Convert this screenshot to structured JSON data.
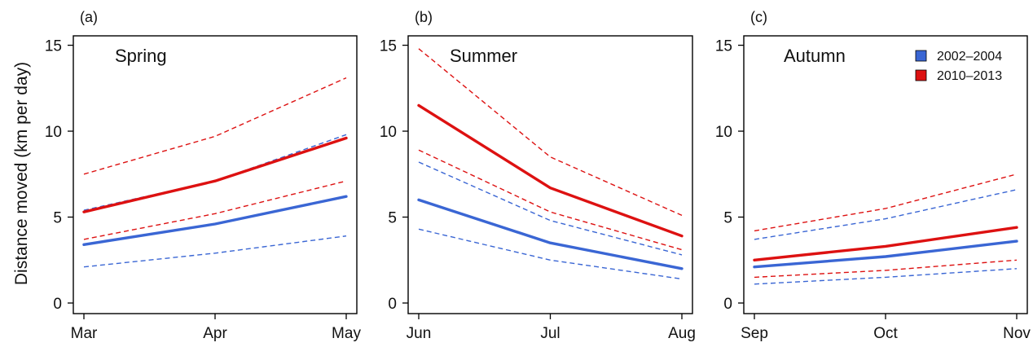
{
  "figure": {
    "ylabel": "Distance moved (km per day)",
    "legend": {
      "placement": "top-right of panel (c)",
      "entries": [
        {
          "label": "2002–2004",
          "color": "#3a66d4"
        },
        {
          "label": "2010–2013",
          "color": "#dd1111"
        }
      ]
    }
  },
  "chart_data": [
    {
      "type": "line",
      "panel_label": "(a)",
      "title": "Spring",
      "x": [
        "Mar",
        "Apr",
        "May"
      ],
      "ylim": [
        0,
        15.5
      ],
      "yticks": [
        0,
        5,
        10,
        15
      ],
      "grid": false,
      "series": [
        {
          "name": "2002–2004",
          "color": "#3a66d4",
          "values": [
            3.4,
            4.6,
            6.2
          ],
          "lower": [
            2.1,
            2.9,
            3.9
          ],
          "upper": [
            5.4,
            7.1,
            9.8
          ]
        },
        {
          "name": "2010–2013",
          "color": "#dd1111",
          "values": [
            5.3,
            7.1,
            9.6
          ],
          "lower": [
            3.7,
            5.2,
            7.1
          ],
          "upper": [
            7.5,
            9.7,
            13.1
          ]
        }
      ]
    },
    {
      "type": "line",
      "panel_label": "(b)",
      "title": "Summer",
      "x": [
        "Jun",
        "Jul",
        "Aug"
      ],
      "ylim": [
        0,
        15.5
      ],
      "yticks": [
        0,
        5,
        10,
        15
      ],
      "grid": false,
      "series": [
        {
          "name": "2002–2004",
          "color": "#3a66d4",
          "values": [
            6.0,
            3.5,
            2.0
          ],
          "lower": [
            4.3,
            2.5,
            1.4
          ],
          "upper": [
            8.2,
            4.8,
            2.8
          ]
        },
        {
          "name": "2010–2013",
          "color": "#dd1111",
          "values": [
            11.5,
            6.7,
            3.9
          ],
          "lower": [
            8.9,
            5.3,
            3.1
          ],
          "upper": [
            14.8,
            8.5,
            5.1
          ]
        }
      ]
    },
    {
      "type": "line",
      "panel_label": "(c)",
      "title": "Autumn",
      "x": [
        "Sep",
        "Oct",
        "Nov"
      ],
      "ylim": [
        0,
        15.5
      ],
      "yticks": [
        0,
        5,
        10,
        15
      ],
      "grid": false,
      "series": [
        {
          "name": "2002–2004",
          "color": "#3a66d4",
          "values": [
            2.1,
            2.7,
            3.6
          ],
          "lower": [
            1.1,
            1.5,
            2.0
          ],
          "upper": [
            3.7,
            4.9,
            6.6
          ]
        },
        {
          "name": "2010–2013",
          "color": "#dd1111",
          "values": [
            2.5,
            3.3,
            4.4
          ],
          "lower": [
            1.5,
            1.9,
            2.5
          ],
          "upper": [
            4.2,
            5.5,
            7.5
          ]
        }
      ]
    }
  ]
}
